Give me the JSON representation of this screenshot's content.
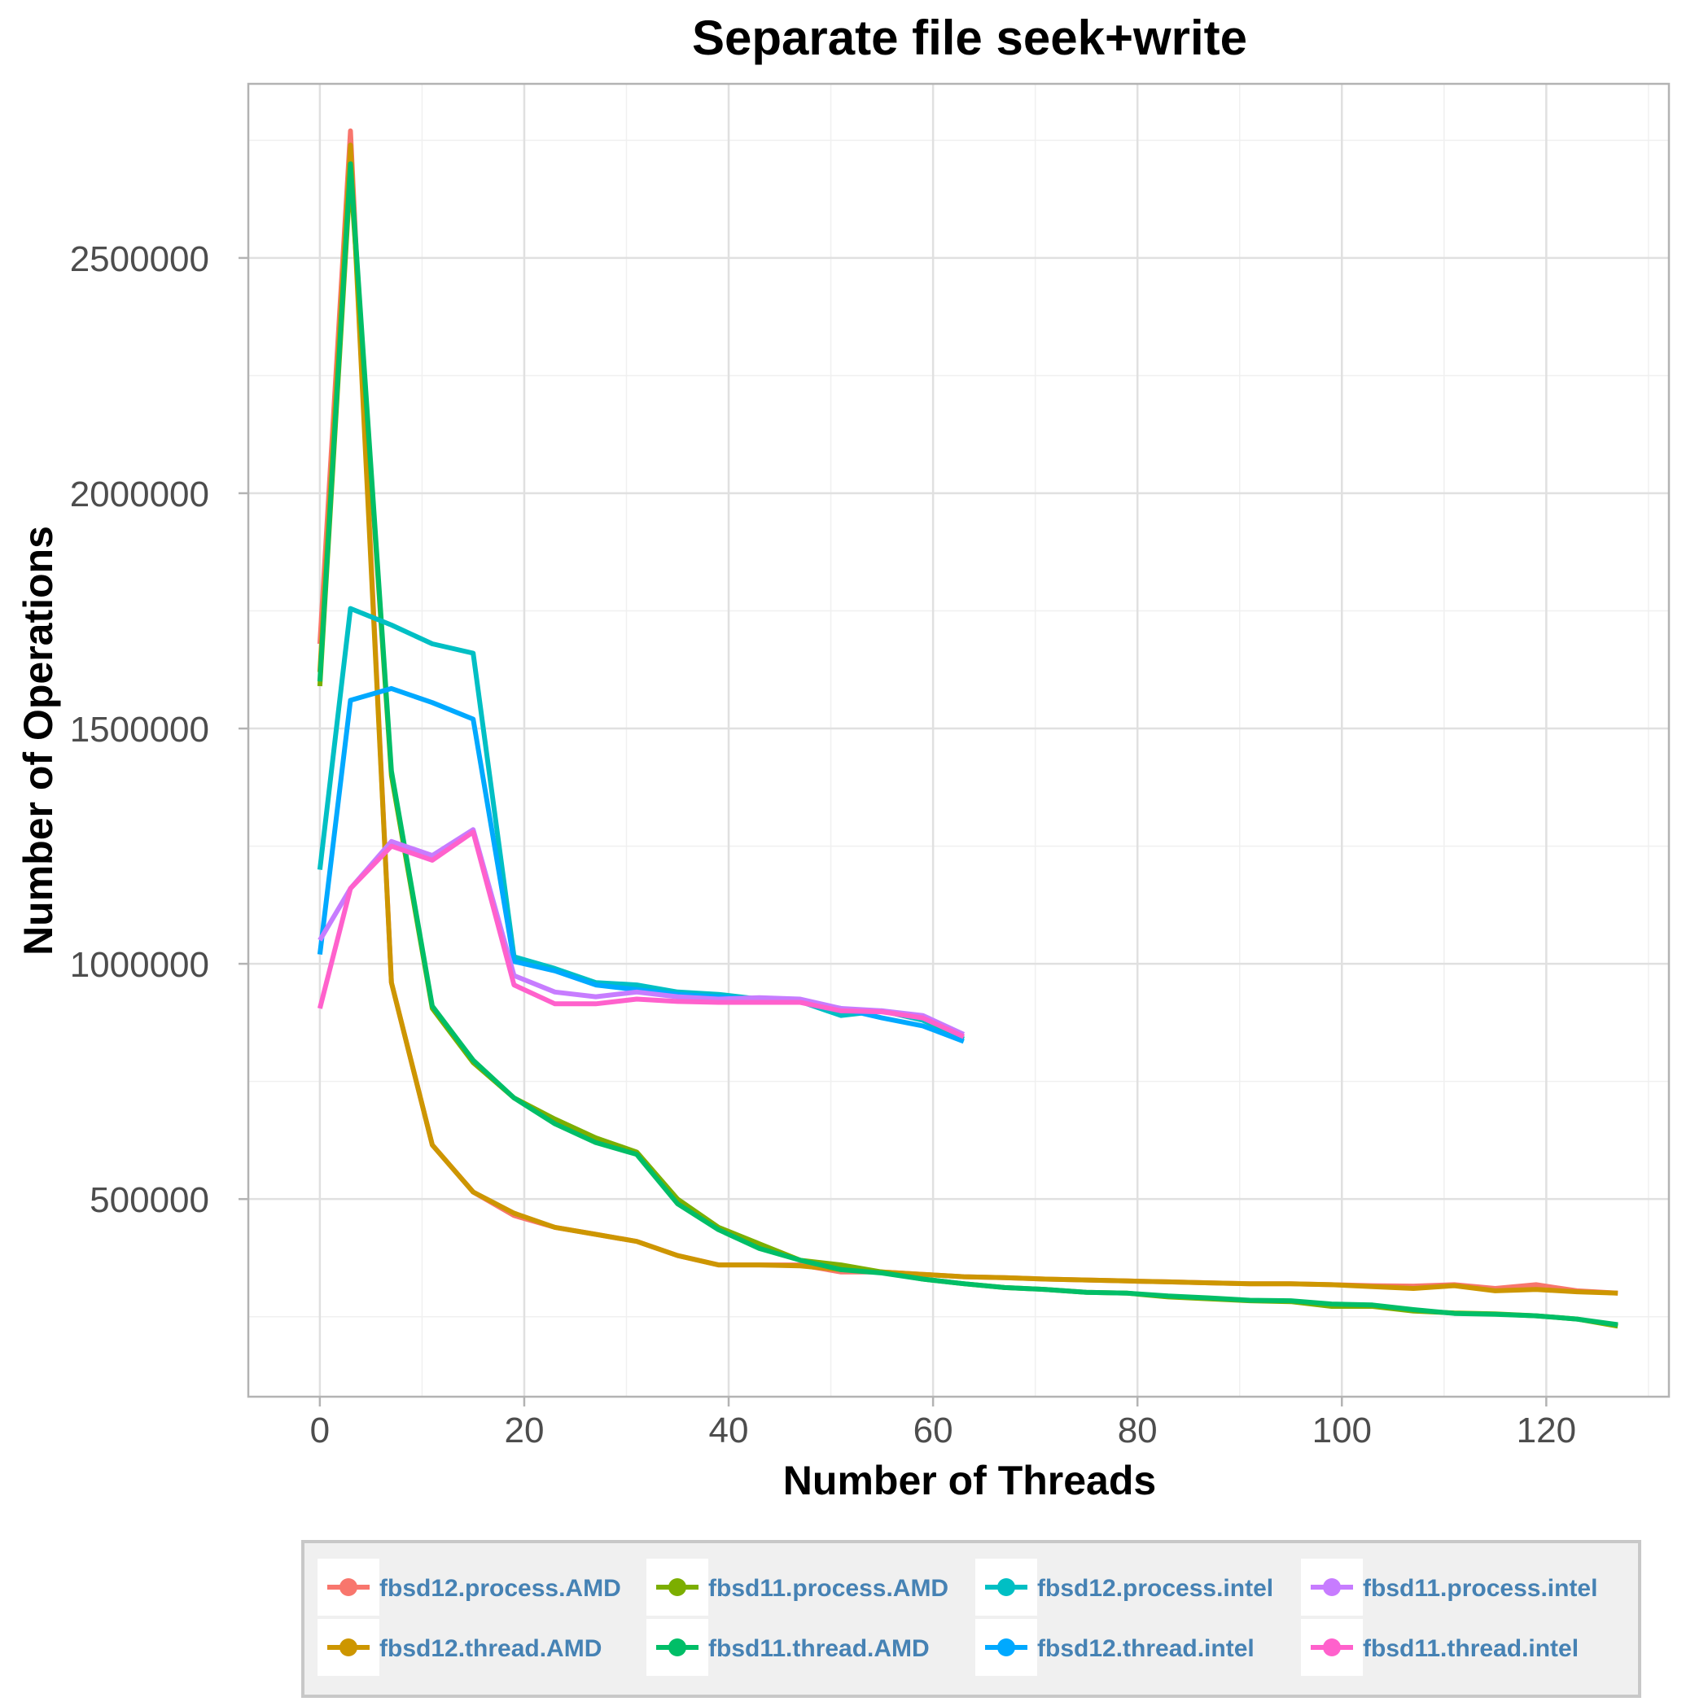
{
  "chart_data": {
    "type": "line",
    "title": "Separate file seek+write",
    "xlabel": "Number of Threads",
    "ylabel": "Number of Operations",
    "xlim": [
      -7,
      132
    ],
    "ylim": [
      80000,
      2870000
    ],
    "xticks": [
      0,
      20,
      40,
      60,
      80,
      100,
      120
    ],
    "yticks": [
      500000,
      1000000,
      1500000,
      2000000,
      2500000
    ],
    "ytick_labels": [
      "500000",
      "1000000",
      "1500000",
      "2000000",
      "2500000"
    ],
    "grid": true,
    "legend_position": "bottom",
    "series": [
      {
        "name": "fbsd12.process.AMD",
        "color": "#F8766D",
        "x": [
          0,
          3,
          7,
          11,
          15,
          19,
          23,
          27,
          31,
          35,
          39,
          43,
          47,
          51,
          55,
          59,
          63,
          67,
          71,
          75,
          79,
          83,
          87,
          91,
          95,
          99,
          103,
          107,
          111,
          115,
          119,
          123,
          127
        ],
        "y": [
          1680000,
          2770000,
          960000,
          615000,
          515000,
          465000,
          440000,
          425000,
          410000,
          380000,
          360000,
          360000,
          360000,
          345000,
          345000,
          340000,
          335000,
          333000,
          330000,
          328000,
          326000,
          324000,
          322000,
          320000,
          320000,
          318000,
          316000,
          315000,
          318000,
          310000,
          318000,
          305000,
          300000
        ]
      },
      {
        "name": "fbsd12.thread.AMD",
        "color": "#CD9600",
        "x": [
          0,
          3,
          7,
          11,
          15,
          19,
          23,
          27,
          31,
          35,
          39,
          43,
          47,
          51,
          55,
          59,
          63,
          67,
          71,
          75,
          79,
          83,
          87,
          91,
          95,
          99,
          103,
          107,
          111,
          115,
          119,
          123,
          127
        ],
        "y": [
          1620000,
          2740000,
          960000,
          615000,
          515000,
          470000,
          440000,
          425000,
          410000,
          380000,
          360000,
          360000,
          358000,
          350000,
          345000,
          340000,
          335000,
          333000,
          330000,
          328000,
          326000,
          324000,
          322000,
          320000,
          320000,
          318000,
          314000,
          310000,
          316000,
          305000,
          308000,
          303000,
          300000
        ]
      },
      {
        "name": "fbsd11.process.AMD",
        "color": "#7CAE00",
        "x": [
          0,
          3,
          7,
          11,
          15,
          19,
          23,
          27,
          31,
          35,
          39,
          43,
          47,
          51,
          55,
          59,
          63,
          67,
          71,
          75,
          79,
          83,
          87,
          91,
          95,
          99,
          103,
          107,
          111,
          115,
          119,
          123,
          127
        ],
        "y": [
          1590000,
          2680000,
          1400000,
          905000,
          790000,
          715000,
          670000,
          630000,
          600000,
          500000,
          440000,
          405000,
          370000,
          360000,
          345000,
          330000,
          320000,
          312000,
          308000,
          302000,
          300000,
          292000,
          288000,
          284000,
          282000,
          272000,
          272000,
          262000,
          258000,
          256000,
          252000,
          245000,
          230000
        ]
      },
      {
        "name": "fbsd11.thread.AMD",
        "color": "#00BE67",
        "x": [
          0,
          3,
          7,
          11,
          15,
          19,
          23,
          27,
          31,
          35,
          39,
          43,
          47,
          51,
          55,
          59,
          63,
          67,
          71,
          75,
          79,
          83,
          87,
          91,
          95,
          99,
          103,
          107,
          111,
          115,
          119,
          123,
          127
        ],
        "y": [
          1600000,
          2700000,
          1410000,
          910000,
          795000,
          715000,
          660000,
          620000,
          595000,
          490000,
          435000,
          395000,
          370000,
          350000,
          343000,
          330000,
          320000,
          312000,
          308000,
          302000,
          300000,
          294000,
          290000,
          285000,
          284000,
          277000,
          275000,
          265000,
          257000,
          255000,
          252000,
          245000,
          233000
        ]
      },
      {
        "name": "fbsd12.process.intel",
        "color": "#00BFC4",
        "x": [
          0,
          3,
          7,
          11,
          15,
          19,
          23,
          27,
          31,
          35,
          39,
          43,
          47,
          51,
          55,
          59,
          63
        ],
        "y": [
          1200000,
          1755000,
          1720000,
          1680000,
          1660000,
          1015000,
          990000,
          960000,
          955000,
          940000,
          935000,
          925000,
          920000,
          890000,
          900000,
          880000,
          840000
        ]
      },
      {
        "name": "fbsd12.thread.intel",
        "color": "#00A9FF",
        "x": [
          0,
          3,
          7,
          11,
          15,
          19,
          23,
          27,
          31,
          35,
          39,
          43,
          47,
          51,
          55,
          59,
          63
        ],
        "y": [
          1020000,
          1560000,
          1585000,
          1555000,
          1520000,
          1005000,
          985000,
          955000,
          945000,
          935000,
          930000,
          925000,
          920000,
          905000,
          885000,
          868000,
          835000
        ]
      },
      {
        "name": "fbsd11.process.intel",
        "color": "#C77CFF",
        "x": [
          0,
          3,
          7,
          11,
          15,
          19,
          23,
          27,
          31,
          35,
          39,
          43,
          47,
          51,
          55,
          59,
          63
        ],
        "y": [
          1050000,
          1160000,
          1260000,
          1230000,
          1285000,
          975000,
          940000,
          930000,
          940000,
          930000,
          925000,
          928000,
          925000,
          905000,
          900000,
          890000,
          850000
        ]
      },
      {
        "name": "fbsd11.thread.intel",
        "color": "#FF61CC",
        "x": [
          0,
          3,
          7,
          11,
          15,
          19,
          23,
          27,
          31,
          35,
          39,
          43,
          47,
          51,
          55,
          59,
          63
        ],
        "y": [
          905000,
          1160000,
          1250000,
          1220000,
          1280000,
          955000,
          915000,
          915000,
          925000,
          920000,
          918000,
          918000,
          918000,
          900000,
          898000,
          885000,
          845000
        ]
      }
    ]
  }
}
